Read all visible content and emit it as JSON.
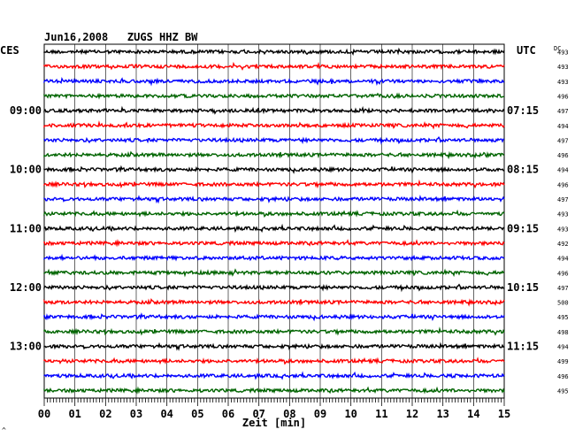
{
  "header": {
    "title": "Jun16,2008   ZUGS HHZ BW",
    "left_label": "CES",
    "right_label": "UTC",
    "dc_label": "DC"
  },
  "chart_data": {
    "type": "line",
    "title": "Jun16,2008   ZUGS HHZ BW",
    "xlabel": "Zeit [min]",
    "ylabel": "",
    "xlim": [
      0,
      15
    ],
    "x_ticks": [
      "00",
      "01",
      "02",
      "03",
      "04",
      "05",
      "06",
      "07",
      "08",
      "09",
      "10",
      "11",
      "12",
      "13",
      "14",
      "15"
    ],
    "trace_colors": [
      "#000000",
      "#ff0000",
      "#0000ff",
      "#006400"
    ],
    "left_time_labels": [
      "09:00",
      "10:00",
      "11:00",
      "12:00",
      "13:00"
    ],
    "right_time_labels": [
      "07:15",
      "08:15",
      "09:15",
      "10:15",
      "11:15"
    ],
    "dc_values": [
      "493",
      "493",
      "493",
      "496",
      "497",
      "494",
      "497",
      "496",
      "494",
      "496",
      "497",
      "493",
      "493",
      "492",
      "494",
      "496",
      "497",
      "500",
      "495",
      "498",
      "494",
      "499",
      "496",
      "495"
    ],
    "grid": true,
    "legend": "none"
  },
  "footnote": "^"
}
